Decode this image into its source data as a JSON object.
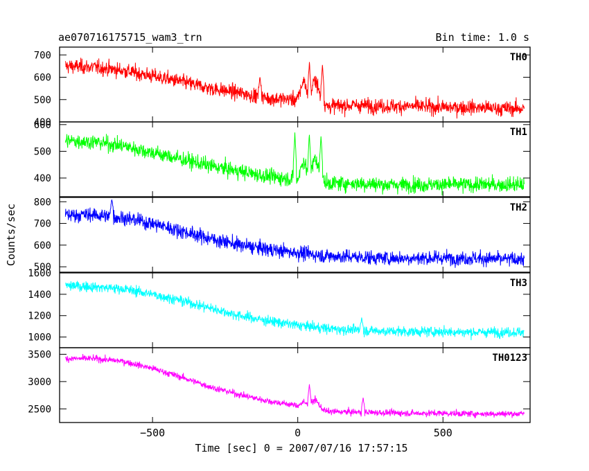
{
  "header": {
    "title": "ae070716175715_wam3_trn",
    "bin_time": "Bin time: 1.0 s"
  },
  "chart_data": {
    "type": "line",
    "title": "ae070716175715_wam3_trn",
    "xlabel": "Time [sec] 0 = 2007/07/16 17:57:15",
    "ylabel": "Counts/sec",
    "xlim": [
      -820,
      800
    ],
    "x_ticks": [
      -500,
      0,
      500
    ],
    "x_tick_labels": [
      "−500",
      "0",
      "500"
    ],
    "x_range": [
      -800,
      780
    ],
    "legend": "none",
    "panels": [
      {
        "name": "TH0",
        "color": "#ff0000",
        "ylim": [
          400,
          735
        ],
        "y_ticks": [
          400,
          500,
          600,
          700
        ],
        "x": [
          -800,
          -700,
          -600,
          -500,
          -400,
          -300,
          -200,
          -100,
          0,
          20,
          40,
          60,
          80,
          100,
          200,
          300,
          400,
          500,
          600,
          700,
          780
        ],
        "y": [
          650,
          645,
          630,
          605,
          580,
          550,
          530,
          505,
          500,
          590,
          500,
          600,
          500,
          470,
          475,
          470,
          470,
          465,
          465,
          460,
          460
        ],
        "noise": 28,
        "spikes": [
          {
            "x": 40,
            "y": 665
          },
          {
            "x": 85,
            "y": 660
          },
          {
            "x": -130,
            "y": 600
          }
        ]
      },
      {
        "name": "TH1",
        "color": "#00ff00",
        "ylim": [
          330,
          610
        ],
        "y_ticks": [
          400,
          500,
          600
        ],
        "x": [
          -800,
          -700,
          -600,
          -500,
          -400,
          -300,
          -200,
          -100,
          0,
          20,
          40,
          60,
          80,
          100,
          200,
          300,
          400,
          500,
          600,
          700,
          780
        ],
        "y": [
          540,
          535,
          520,
          495,
          470,
          445,
          425,
          405,
          395,
          470,
          400,
          480,
          400,
          380,
          380,
          375,
          375,
          375,
          375,
          375,
          375
        ],
        "noise": 24,
        "spikes": [
          {
            "x": -10,
            "y": 565
          },
          {
            "x": 40,
            "y": 565
          },
          {
            "x": 80,
            "y": 560
          }
        ]
      },
      {
        "name": "TH2",
        "color": "#0000ff",
        "ylim": [
          475,
          820
        ],
        "y_ticks": [
          500,
          600,
          700,
          800
        ],
        "x": [
          -800,
          -700,
          -600,
          -500,
          -400,
          -300,
          -200,
          -100,
          0,
          100,
          200,
          300,
          400,
          500,
          600,
          700,
          780
        ],
        "y": [
          740,
          740,
          725,
          700,
          665,
          630,
          600,
          580,
          565,
          550,
          545,
          540,
          540,
          540,
          540,
          535,
          535
        ],
        "noise": 28,
        "spikes": [
          {
            "x": -640,
            "y": 815
          }
        ]
      },
      {
        "name": "TH3",
        "color": "#00ffff",
        "ylim": [
          900,
          1600
        ],
        "y_ticks": [
          1000,
          1200,
          1400,
          1600
        ],
        "x": [
          -800,
          -700,
          -600,
          -500,
          -400,
          -300,
          -200,
          -100,
          0,
          100,
          200,
          300,
          400,
          500,
          600,
          700,
          780
        ],
        "y": [
          1480,
          1470,
          1450,
          1400,
          1340,
          1270,
          1200,
          1150,
          1110,
          1080,
          1065,
          1055,
          1050,
          1050,
          1045,
          1045,
          1045
        ],
        "noise": 40,
        "spikes": [
          {
            "x": 220,
            "y": 1180
          }
        ]
      },
      {
        "name": "TH0123",
        "color": "#ff00ff",
        "ylim": [
          2250,
          3620
        ],
        "y_ticks": [
          2500,
          3000,
          3500
        ],
        "x": [
          -800,
          -700,
          -600,
          -500,
          -400,
          -300,
          -200,
          -100,
          0,
          20,
          40,
          60,
          80,
          100,
          200,
          300,
          400,
          500,
          600,
          700,
          780
        ],
        "y": [
          3420,
          3420,
          3370,
          3240,
          3080,
          2900,
          2760,
          2640,
          2560,
          2620,
          2560,
          2680,
          2520,
          2450,
          2440,
          2430,
          2420,
          2420,
          2410,
          2410,
          2410
        ],
        "noise": 50,
        "spikes": [
          {
            "x": 40,
            "y": 2950
          },
          {
            "x": 225,
            "y": 2700
          }
        ]
      }
    ]
  }
}
